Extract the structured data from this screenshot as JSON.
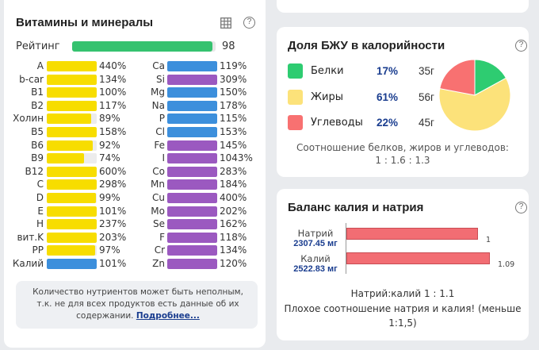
{
  "vitamins": {
    "title": "Витамины и минералы",
    "rating_label": "Рейтинг",
    "rating_value": "98",
    "rating_fraction": 0.98,
    "left": [
      {
        "name": "A",
        "value": "440%",
        "fraction": 1.0,
        "color": "#f7dd00"
      },
      {
        "name": "b-car",
        "value": "134%",
        "fraction": 1.0,
        "color": "#f7dd00"
      },
      {
        "name": "B1",
        "value": "100%",
        "fraction": 1.0,
        "color": "#f7dd00"
      },
      {
        "name": "B2",
        "value": "117%",
        "fraction": 1.0,
        "color": "#f7dd00"
      },
      {
        "name": "Холин",
        "value": "89%",
        "fraction": 0.89,
        "color": "#f7dd00"
      },
      {
        "name": "B5",
        "value": "158%",
        "fraction": 1.0,
        "color": "#f7dd00"
      },
      {
        "name": "B6",
        "value": "92%",
        "fraction": 0.92,
        "color": "#f7dd00"
      },
      {
        "name": "B9",
        "value": "74%",
        "fraction": 0.74,
        "color": "#f7dd00"
      },
      {
        "name": "B12",
        "value": "600%",
        "fraction": 1.0,
        "color": "#f7dd00"
      },
      {
        "name": "C",
        "value": "298%",
        "fraction": 1.0,
        "color": "#f7dd00"
      },
      {
        "name": "D",
        "value": "99%",
        "fraction": 0.99,
        "color": "#f7dd00"
      },
      {
        "name": "E",
        "value": "101%",
        "fraction": 1.0,
        "color": "#f7dd00"
      },
      {
        "name": "H",
        "value": "237%",
        "fraction": 1.0,
        "color": "#f7dd00"
      },
      {
        "name": "вит.K",
        "value": "203%",
        "fraction": 1.0,
        "color": "#f7dd00"
      },
      {
        "name": "PP",
        "value": "97%",
        "fraction": 0.97,
        "color": "#f7dd00"
      },
      {
        "name": "Калий",
        "value": "101%",
        "fraction": 1.0,
        "color": "#3c8fdc"
      }
    ],
    "right": [
      {
        "name": "Ca",
        "value": "119%",
        "fraction": 1.0,
        "color": "#3c8fdc"
      },
      {
        "name": "Si",
        "value": "309%",
        "fraction": 1.0,
        "color": "#9b59c0"
      },
      {
        "name": "Mg",
        "value": "150%",
        "fraction": 1.0,
        "color": "#3c8fdc"
      },
      {
        "name": "Na",
        "value": "178%",
        "fraction": 1.0,
        "color": "#3c8fdc"
      },
      {
        "name": "P",
        "value": "115%",
        "fraction": 1.0,
        "color": "#3c8fdc"
      },
      {
        "name": "Cl",
        "value": "153%",
        "fraction": 1.0,
        "color": "#3c8fdc"
      },
      {
        "name": "Fe",
        "value": "145%",
        "fraction": 1.0,
        "color": "#9b59c0"
      },
      {
        "name": "I",
        "value": "1043%",
        "fraction": 1.0,
        "color": "#9b59c0"
      },
      {
        "name": "Co",
        "value": "283%",
        "fraction": 1.0,
        "color": "#9b59c0"
      },
      {
        "name": "Mn",
        "value": "184%",
        "fraction": 1.0,
        "color": "#9b59c0"
      },
      {
        "name": "Cu",
        "value": "400%",
        "fraction": 1.0,
        "color": "#9b59c0"
      },
      {
        "name": "Mo",
        "value": "202%",
        "fraction": 1.0,
        "color": "#9b59c0"
      },
      {
        "name": "Se",
        "value": "162%",
        "fraction": 1.0,
        "color": "#9b59c0"
      },
      {
        "name": "F",
        "value": "118%",
        "fraction": 1.0,
        "color": "#9b59c0"
      },
      {
        "name": "Cr",
        "value": "134%",
        "fraction": 1.0,
        "color": "#9b59c0"
      },
      {
        "name": "Zn",
        "value": "120%",
        "fraction": 1.0,
        "color": "#9b59c0"
      }
    ],
    "note_text": "Количество нутриентов может быть неполным, т.к. не для всех продуктов есть данные об их содержании.",
    "note_link": "Подробнее...",
    "table_icon": "table-icon",
    "help_icon": "question-circle-icon"
  },
  "bju": {
    "title": "Доля БЖУ в калорийности",
    "items": [
      {
        "name": "Белки",
        "percent": "17%",
        "grams": "35г",
        "color": "#2ecc71"
      },
      {
        "name": "Жиры",
        "percent": "61%",
        "grams": "56г",
        "color": "#fce27a"
      },
      {
        "name": "Углеводы",
        "percent": "22%",
        "grams": "45г",
        "color": "#f87171"
      }
    ],
    "caption_line1": "Соотношение белков, жиров и углеводов:",
    "caption_line2": "1 : 1.6 : 1.3",
    "help_icon": "question-circle-icon"
  },
  "chart_data": {
    "type": "pie",
    "categories": [
      "Белки",
      "Жиры",
      "Углеводы"
    ],
    "values": [
      17,
      61,
      22
    ],
    "colors": [
      "#2ecc71",
      "#fce27a",
      "#f87171"
    ]
  },
  "kna": {
    "title": "Баланс калия и натрия",
    "rows": [
      {
        "name": "Натрий",
        "amount": "2307.45 мг",
        "value_label": "1",
        "ratio": 1
      },
      {
        "name": "Калий",
        "amount": "2522.83 мг",
        "value_label": "1.09",
        "ratio": 1.09
      }
    ],
    "ratio_text": "Натрий:калий 1 : 1.1",
    "warning_text": "Плохое соотношение натрия и калия! (меньше 1:1,5)",
    "bar_color": "#f26d73",
    "help_icon": "question-circle-icon"
  }
}
